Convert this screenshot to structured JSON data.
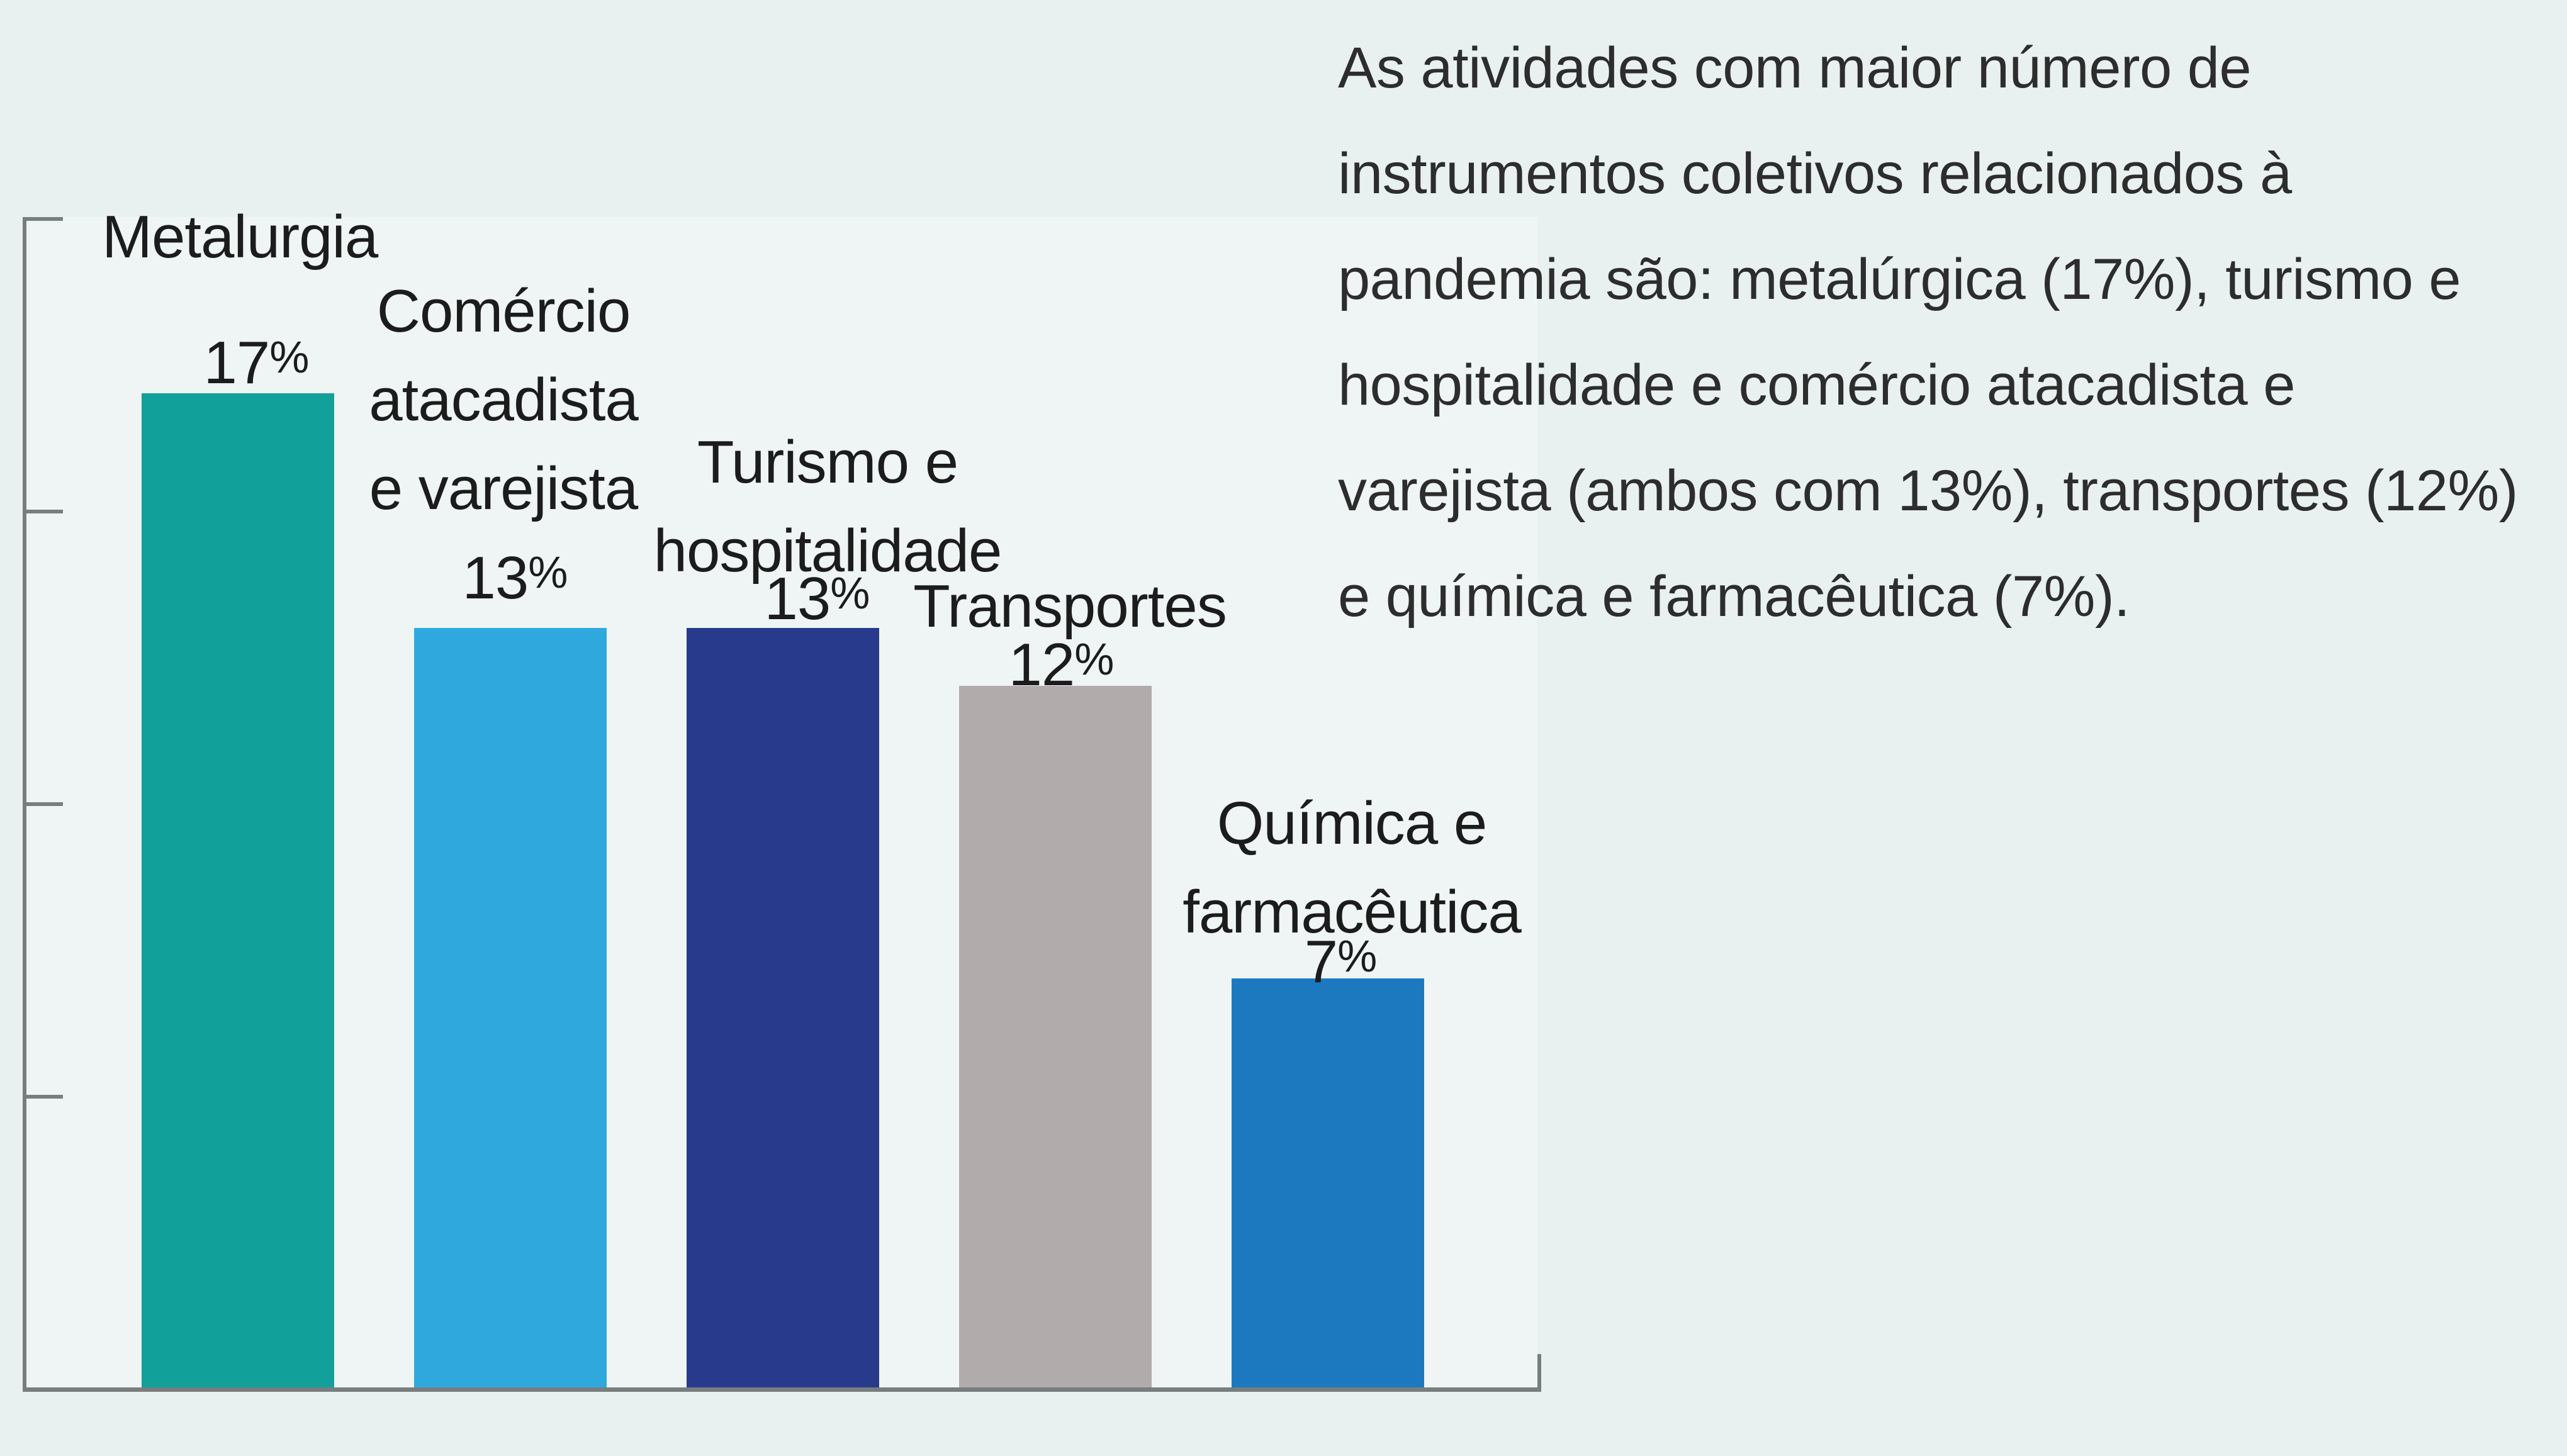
{
  "page": {
    "background_color": "#e9f1f0"
  },
  "note": {
    "lines": [
      "As atividades com maior número de",
      "instrumentos coletivos relacionados à",
      "pandemia são: metalúrgica (17%), turismo e",
      "hospitalidade e comércio atacadista e",
      "varejista (ambos com 13%), transportes (12%)",
      "e química e farmacêutica (7%)."
    ]
  },
  "chart_data": {
    "type": "bar",
    "categories": [
      "Metalurgia",
      "Comércio atacadista e varejista",
      "Turismo e hospitalidade",
      "Transportes",
      "Química e farmacêutica"
    ],
    "values": [
      17,
      13,
      13,
      12,
      7
    ],
    "unit": "%",
    "title": "",
    "xlabel": "",
    "ylabel": "",
    "ylim": [
      0,
      20
    ],
    "y_tick_interval": 5,
    "y_tick_labels_visible": false,
    "grid": false,
    "legend": false,
    "axis_color": "#787d7e",
    "text_color": "#1c1c1c",
    "annotation": "As atividades com maior número de instrumentos coletivos relacionados à pandemia são: metalúrgica (17%), turismo e hospitalidade e comércio atacadista e varejista (ambos com 13%), transportes (12%) e química e farmacêutica (7%).",
    "bars": [
      {
        "label_lines": [
          "Metalurgia"
        ],
        "value": 17,
        "pct_value": "17",
        "pct_symbol": "%",
        "color": "#12a09b"
      },
      {
        "label_lines": [
          "Comércio",
          "atacadista",
          "e varejista"
        ],
        "value": 13,
        "pct_value": "13",
        "pct_symbol": "%",
        "color": "#2fa9dd"
      },
      {
        "label_lines": [
          "Turismo e",
          "hospitalidade"
        ],
        "value": 13,
        "pct_value": "13",
        "pct_symbol": "%",
        "color": "#283a8c"
      },
      {
        "label_lines": [
          "Transportes"
        ],
        "value": 12,
        "pct_value": "12",
        "pct_symbol": "%",
        "color": "#b1acab"
      },
      {
        "label_lines": [
          "Química e",
          "farmacêutica"
        ],
        "value": 7,
        "pct_value": "7",
        "pct_symbol": "%",
        "color": "#1d79bf"
      }
    ]
  }
}
